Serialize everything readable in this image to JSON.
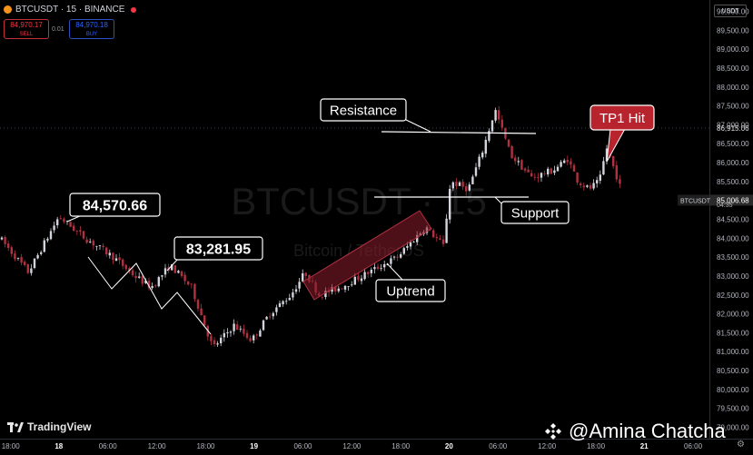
{
  "header": {
    "symbol": "BTCUSDT · 15 · BINANCE",
    "sell_price": "84,970.17",
    "sell_label": "SELL",
    "spread": "0.01",
    "buy_price": "84,970.18",
    "buy_label": "BUY",
    "currency": "USDT"
  },
  "branding": {
    "tradingview": "TradingView",
    "watermark": "@Amina Chatcha",
    "bg_ticker": "BTCUSDT · 15",
    "bg_name": "Bitcoin / TetherUS"
  },
  "colors": {
    "up": "#d1d4dc",
    "down": "#b23141",
    "background": "#000000",
    "axis_text": "#b2b5be",
    "callout_red": "#b8242e"
  },
  "chart_data": {
    "type": "candlestick",
    "symbol": "BTCUSDT",
    "interval": "15",
    "exchange": "BINANCE",
    "y_axis": {
      "min": 78700,
      "max": 90300,
      "ticks": [
        "90,000.00",
        "89,500.00",
        "89,000.00",
        "88,500.00",
        "88,000.00",
        "87,500.00",
        "87,000.00",
        "86,500.00",
        "86,000.00",
        "85,500.00",
        "85,000.00",
        "84,500.00",
        "84,000.00",
        "83,500.00",
        "83,000.00",
        "82,500.00",
        "82,000.00",
        "81,500.00",
        "81,000.00",
        "80,500.00",
        "80,000.00",
        "79,500.00",
        "79,000.00"
      ]
    },
    "x_axis": {
      "ticks": [
        {
          "label": "18:00",
          "bold": false,
          "pos": 0.015
        },
        {
          "label": "18",
          "bold": true,
          "pos": 0.083
        },
        {
          "label": "06:00",
          "bold": false,
          "pos": 0.152
        },
        {
          "label": "12:00",
          "bold": false,
          "pos": 0.221
        },
        {
          "label": "18:00",
          "bold": false,
          "pos": 0.29
        },
        {
          "label": "19",
          "bold": true,
          "pos": 0.358
        },
        {
          "label": "06:00",
          "bold": false,
          "pos": 0.427
        },
        {
          "label": "12:00",
          "bold": false,
          "pos": 0.496
        },
        {
          "label": "18:00",
          "bold": false,
          "pos": 0.565
        },
        {
          "label": "20",
          "bold": true,
          "pos": 0.633
        },
        {
          "label": "06:00",
          "bold": false,
          "pos": 0.702
        },
        {
          "label": "12:00",
          "bold": false,
          "pos": 0.771
        },
        {
          "label": "18:00",
          "bold": false,
          "pos": 0.84
        },
        {
          "label": "21",
          "bold": true,
          "pos": 0.908
        },
        {
          "label": "06:00",
          "bold": false,
          "pos": 0.977
        }
      ]
    },
    "price_path": [
      [
        0.0,
        84000
      ],
      [
        0.04,
        83100
      ],
      [
        0.083,
        84570.66
      ],
      [
        0.12,
        84000
      ],
      [
        0.16,
        83500
      ],
      [
        0.19,
        83000
      ],
      [
        0.213,
        82700
      ],
      [
        0.24,
        83281.95
      ],
      [
        0.27,
        82700
      ],
      [
        0.3,
        81100
      ],
      [
        0.33,
        81700
      ],
      [
        0.355,
        81300
      ],
      [
        0.38,
        82000
      ],
      [
        0.41,
        82500
      ],
      [
        0.43,
        83100
      ],
      [
        0.45,
        82500
      ],
      [
        0.48,
        82700
      ],
      [
        0.52,
        83100
      ],
      [
        0.56,
        83500
      ],
      [
        0.6,
        84300
      ],
      [
        0.625,
        83800
      ],
      [
        0.635,
        85500
      ],
      [
        0.66,
        85300
      ],
      [
        0.68,
        86300
      ],
      [
        0.698,
        87400
      ],
      [
        0.72,
        86200
      ],
      [
        0.75,
        85600
      ],
      [
        0.78,
        85800
      ],
      [
        0.8,
        86100
      ],
      [
        0.815,
        85500
      ],
      [
        0.83,
        85300
      ],
      [
        0.845,
        85500
      ],
      [
        0.855,
        86400
      ],
      [
        0.87,
        85600
      ],
      [
        0.88,
        85000
      ]
    ],
    "price_labels": [
      {
        "text": "86,915.06",
        "value": 86915.06,
        "style": "plain"
      },
      {
        "text": "BTCUSDT",
        "value": 85006.68,
        "style": "symbol"
      },
      {
        "text": "85,006.68",
        "value": 85006.68,
        "style": "highlight"
      },
      {
        "text": "04:35",
        "value": 84800,
        "style": "countdown"
      }
    ],
    "annotations": {
      "high_label": {
        "text": "84,570.66",
        "value": 84570.66
      },
      "mid_label": {
        "text": "83,281.95",
        "value": 83281.95
      },
      "resistance": {
        "text": "Resistance",
        "value": 87300
      },
      "support": {
        "text": "Support",
        "value": 85500
      },
      "uptrend": {
        "text": "Uptrend"
      },
      "tp": {
        "text": "TP1 Hit"
      }
    }
  }
}
